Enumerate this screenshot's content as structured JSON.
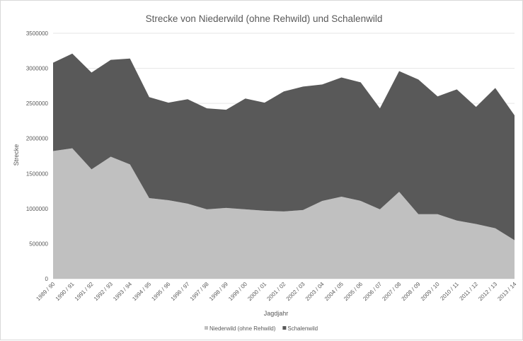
{
  "chart_data": {
    "type": "area",
    "stacked": true,
    "title": "Strecke von Niederwild (ohne Rehwild) und Schalenwild",
    "xlabel": "Jagdjahr",
    "ylabel": "Strecke",
    "ylim": [
      0,
      3500000
    ],
    "yticks": [
      "0",
      "500000",
      "1000000",
      "1500000",
      "2000000",
      "2500000",
      "3000000",
      "3500000"
    ],
    "grid": true,
    "legend_position": "bottom",
    "categories": [
      "1989 / 90",
      "1990 / 91",
      "1991 / 92",
      "1992 / 93",
      "1993 / 94",
      "1994 / 95",
      "1995 / 96",
      "1996 / 97",
      "1997 / 98",
      "1998 / 99",
      "1999 / 00",
      "2000 / 01",
      "2001 / 02",
      "2002 / 03",
      "2003 / 04",
      "2004 / 05",
      "2005 / 06",
      "2006 / 07",
      "2007 / 08",
      "2008 / 09",
      "2009 / 10",
      "2010 / 11",
      "2011 / 12",
      "2012 / 13",
      "2013 / 14"
    ],
    "series": [
      {
        "name": "Niederwild (ohne Rehwild)",
        "color": "#c0c0c0",
        "values": [
          1820000,
          1860000,
          1560000,
          1740000,
          1630000,
          1150000,
          1120000,
          1070000,
          990000,
          1010000,
          990000,
          970000,
          960000,
          980000,
          1110000,
          1170000,
          1110000,
          990000,
          1240000,
          920000,
          920000,
          830000,
          780000,
          720000,
          550000
        ]
      },
      {
        "name": "Schalenwild",
        "color": "#595959",
        "values": [
          1260000,
          1350000,
          1380000,
          1380000,
          1510000,
          1440000,
          1390000,
          1490000,
          1440000,
          1400000,
          1580000,
          1540000,
          1710000,
          1760000,
          1660000,
          1700000,
          1690000,
          1440000,
          1720000,
          1920000,
          1680000,
          1870000,
          1670000,
          2000000,
          1780000
        ]
      }
    ]
  }
}
